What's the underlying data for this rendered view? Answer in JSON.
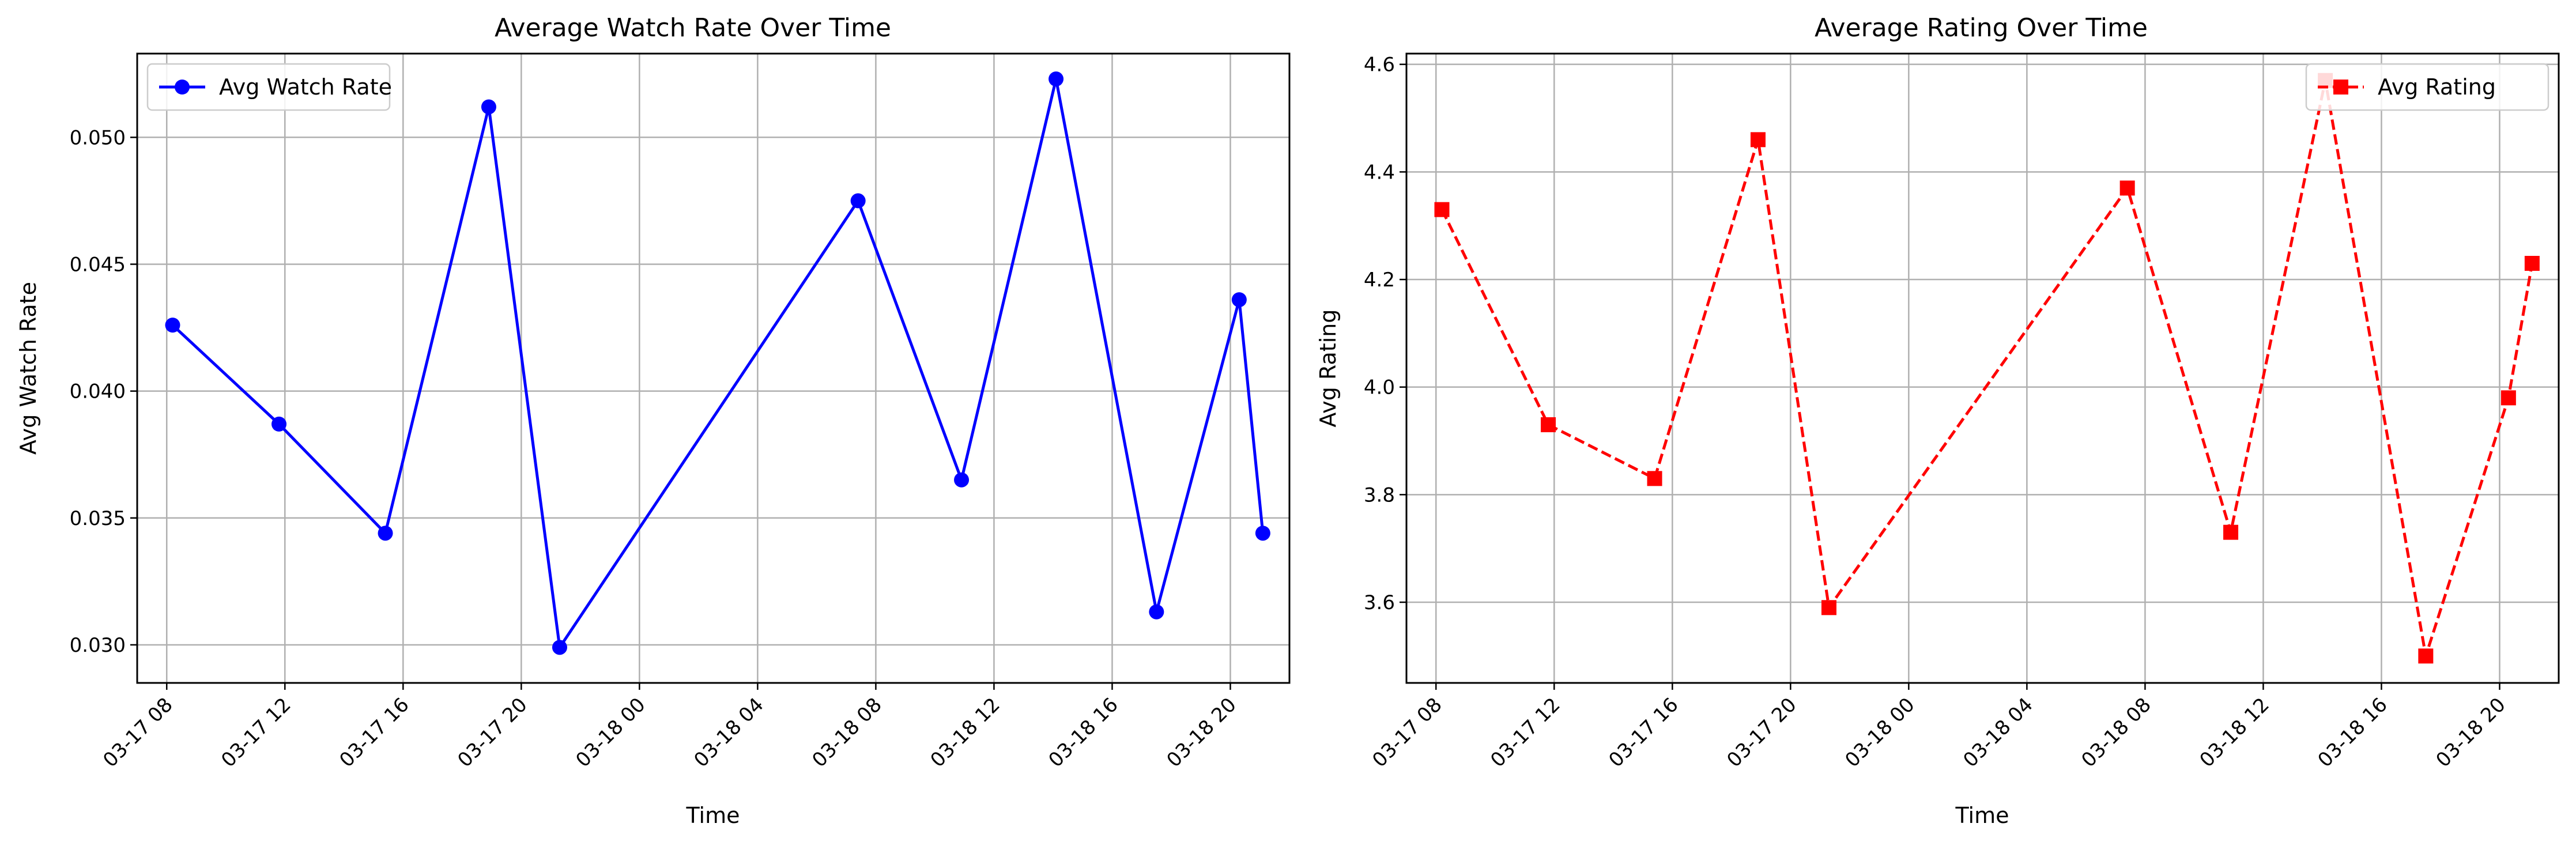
{
  "chart_data": [
    {
      "type": "line",
      "title": "Average Watch Rate Over Time",
      "xlabel": "Time",
      "ylabel": "Avg Watch Rate",
      "x_ticks": [
        "03-17 08",
        "03-17 12",
        "03-17 16",
        "03-17 20",
        "03-18 00",
        "03-18 04",
        "03-18 08",
        "03-18 12",
        "03-18 16",
        "03-18 20"
      ],
      "y_ticks": [
        "0.030",
        "0.035",
        "0.040",
        "0.045",
        "0.050"
      ],
      "ylim": [
        0.0285,
        0.0533
      ],
      "xlim": [
        "2024-03-17 07:00",
        "2024-03-18 22:00"
      ],
      "grid": true,
      "legend_position": "upper-left",
      "color": "#0000ff",
      "marker": "circle",
      "linestyle": "solid",
      "series": [
        {
          "name": "Avg Watch Rate",
          "x": [
            "2024-03-17 08:12",
            "2024-03-17 11:48",
            "2024-03-17 15:24",
            "2024-03-17 18:54",
            "2024-03-17 21:18",
            "2024-03-18 07:24",
            "2024-03-18 10:54",
            "2024-03-18 14:06",
            "2024-03-18 17:30",
            "2024-03-18 20:18",
            "2024-03-18 21:06"
          ],
          "y": [
            0.0426,
            0.0387,
            0.0344,
            0.0512,
            0.0299,
            0.0475,
            0.0365,
            0.0523,
            0.0313,
            0.0436,
            0.0344
          ]
        }
      ]
    },
    {
      "type": "line",
      "title": "Average Rating Over Time",
      "xlabel": "Time",
      "ylabel": "Avg Rating",
      "x_ticks": [
        "03-17 08",
        "03-17 12",
        "03-17 16",
        "03-17 20",
        "03-18 00",
        "03-18 04",
        "03-18 08",
        "03-18 12",
        "03-18 16",
        "03-18 20"
      ],
      "y_ticks": [
        "3.6",
        "3.8",
        "4.0",
        "4.2",
        "4.4",
        "4.6"
      ],
      "ylim": [
        3.45,
        4.62
      ],
      "xlim": [
        "2024-03-17 07:00",
        "2024-03-18 22:00"
      ],
      "grid": true,
      "legend_position": "upper-right",
      "color": "#ff0000",
      "marker": "square",
      "linestyle": "dashed",
      "series": [
        {
          "name": "Avg Rating",
          "x": [
            "2024-03-17 08:12",
            "2024-03-17 11:48",
            "2024-03-17 15:24",
            "2024-03-17 18:54",
            "2024-03-17 21:18",
            "2024-03-18 07:24",
            "2024-03-18 10:54",
            "2024-03-18 14:06",
            "2024-03-18 17:30",
            "2024-03-18 20:18",
            "2024-03-18 21:06"
          ],
          "y": [
            4.33,
            3.93,
            3.83,
            4.46,
            3.59,
            4.37,
            3.73,
            4.57,
            3.5,
            3.98,
            4.23
          ]
        }
      ]
    }
  ]
}
